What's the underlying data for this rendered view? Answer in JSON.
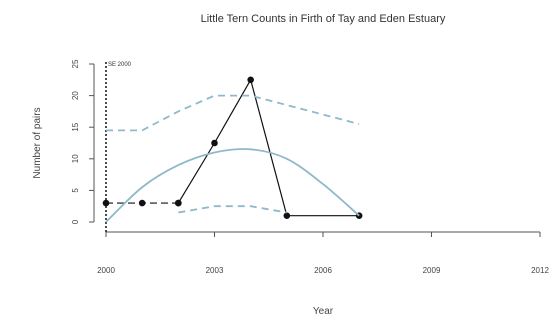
{
  "chart_data": {
    "type": "line",
    "title": "Little Tern Counts in Firth of Tay and Eden Estuary",
    "xlabel": "Year",
    "ylabel": "Number of pairs",
    "xlim": [
      2000,
      2012
    ],
    "ylim": [
      0,
      25
    ],
    "x_ticks": [
      2000,
      2003,
      2006,
      2009,
      2012
    ],
    "y_ticks": [
      0,
      5,
      10,
      15,
      20,
      25
    ],
    "grid": false,
    "annotation": {
      "text": "SE 2000",
      "x": 2000
    },
    "series": [
      {
        "style": "points-dashed",
        "color": "#111111",
        "x": [
          2000,
          2001,
          2002
        ],
        "y": [
          3,
          3,
          3
        ]
      },
      {
        "style": "points-solid",
        "color": "#111111",
        "x": [
          2002,
          2003,
          2004,
          2005,
          2007
        ],
        "y": [
          3,
          12.5,
          22.5,
          1,
          1
        ]
      },
      {
        "style": "smooth-solid",
        "color": "#8fb8cc",
        "x": [
          2000,
          2001,
          2002,
          2003,
          2004,
          2005,
          2006,
          2007
        ],
        "y": [
          0,
          5.5,
          9,
          11,
          11.5,
          10,
          6,
          1
        ]
      },
      {
        "style": "dashed",
        "color": "#8fb8cc",
        "x": [
          2000,
          2001,
          2002,
          2003,
          2004,
          2005,
          2006,
          2007
        ],
        "y": [
          14.5,
          14.5,
          17.5,
          20,
          20,
          18.5,
          17,
          15.5
        ]
      },
      {
        "style": "dashed",
        "color": "#8fb8cc",
        "x": [
          2002,
          2003,
          2004,
          2005
        ],
        "y": [
          1.5,
          2.5,
          2.5,
          1.5
        ]
      }
    ]
  }
}
